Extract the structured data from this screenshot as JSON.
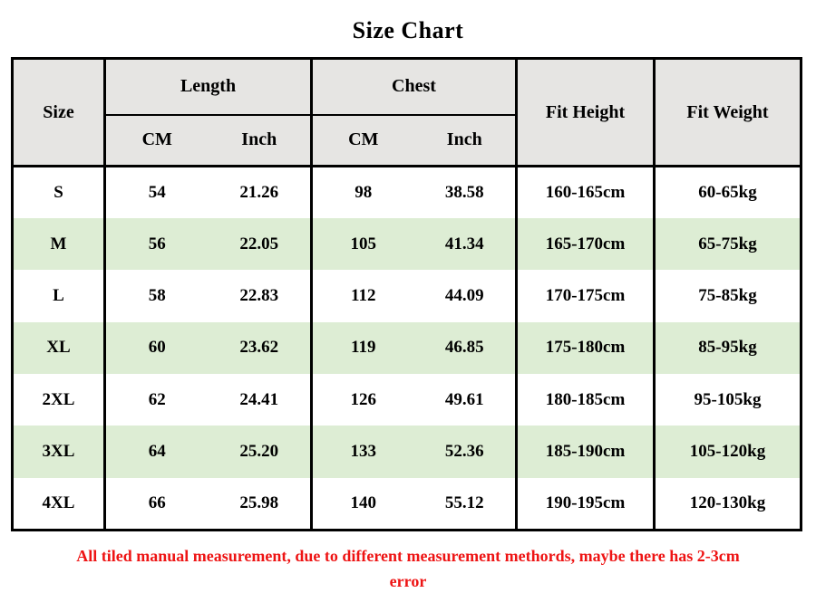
{
  "title": "Size Chart",
  "table": {
    "headers": {
      "size": "Size",
      "length": "Length",
      "chest": "Chest",
      "fit_height": "Fit Height",
      "fit_weight": "Fit Weight",
      "cm": "CM",
      "inch": "Inch"
    },
    "rows": [
      {
        "size": "S",
        "length_cm": "54",
        "length_inch": "21.26",
        "chest_cm": "98",
        "chest_inch": "38.58",
        "fit_height": "160-165cm",
        "fit_weight": "60-65kg"
      },
      {
        "size": "M",
        "length_cm": "56",
        "length_inch": "22.05",
        "chest_cm": "105",
        "chest_inch": "41.34",
        "fit_height": "165-170cm",
        "fit_weight": "65-75kg"
      },
      {
        "size": "L",
        "length_cm": "58",
        "length_inch": "22.83",
        "chest_cm": "112",
        "chest_inch": "44.09",
        "fit_height": "170-175cm",
        "fit_weight": "75-85kg"
      },
      {
        "size": "XL",
        "length_cm": "60",
        "length_inch": "23.62",
        "chest_cm": "119",
        "chest_inch": "46.85",
        "fit_height": "175-180cm",
        "fit_weight": "85-95kg"
      },
      {
        "size": "2XL",
        "length_cm": "62",
        "length_inch": "24.41",
        "chest_cm": "126",
        "chest_inch": "49.61",
        "fit_height": "180-185cm",
        "fit_weight": "95-105kg"
      },
      {
        "size": "3XL",
        "length_cm": "64",
        "length_inch": "25.20",
        "chest_cm": "133",
        "chest_inch": "52.36",
        "fit_height": "185-190cm",
        "fit_weight": "105-120kg"
      },
      {
        "size": "4XL",
        "length_cm": "66",
        "length_inch": "25.98",
        "chest_cm": "140",
        "chest_inch": "55.12",
        "fit_height": "190-195cm",
        "fit_weight": "120-130kg"
      }
    ]
  },
  "footnote": {
    "lines": [
      "All tiled manual measurement, due to different measurement methords, maybe there has 2-3cm",
      "error"
    ]
  },
  "colors": {
    "header_bg": "#e6e5e3",
    "row_bg": "#ffffff",
    "row_alt_bg": "#ddedd4",
    "border": "#000000",
    "note_red": "#ee1414",
    "text": "#000000"
  }
}
